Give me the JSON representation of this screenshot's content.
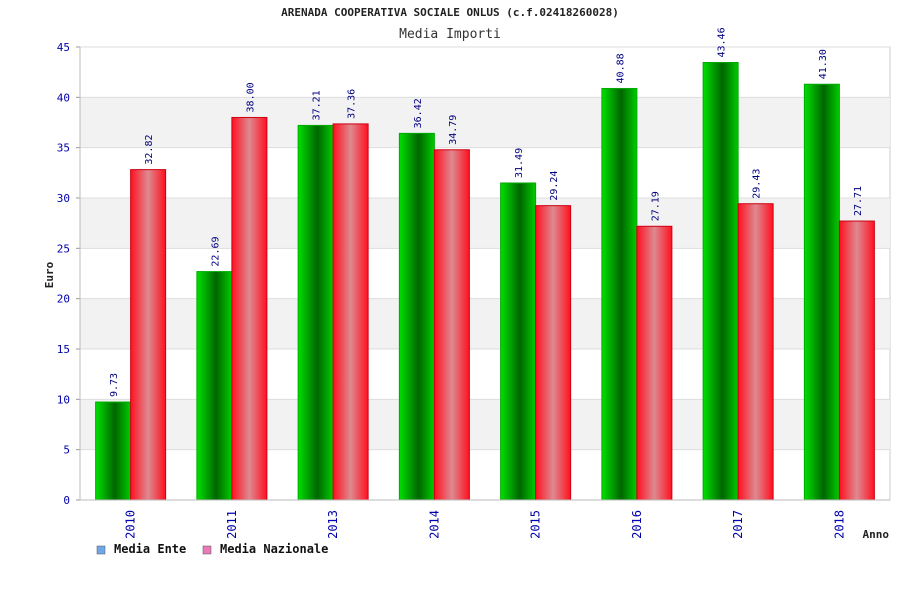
{
  "chart_data": {
    "type": "bar",
    "title": "ARENADA COOPERATIVA SOCIALE ONLUS (c.f.02418260028)",
    "subtitle": "Media Importi",
    "xlabel": "Anno",
    "ylabel": "Euro",
    "ylim": [
      0,
      45
    ],
    "yticks": [
      0,
      5,
      10,
      15,
      20,
      25,
      30,
      35,
      40,
      45
    ],
    "grid": true,
    "legend_position": "bottom-left",
    "categories": [
      "2010",
      "2011",
      "2013",
      "2014",
      "2015",
      "2016",
      "2017",
      "2018"
    ],
    "series": [
      {
        "name": "Media Ente",
        "values": [
          9.73,
          22.69,
          37.21,
          36.42,
          31.49,
          40.88,
          43.46,
          41.3
        ],
        "labels": [
          "9.73",
          "22.69",
          "37.21",
          "36.42",
          "31.49",
          "40.88",
          "43.46",
          "41.30"
        ],
        "color": "#00cc00",
        "legend_color": "#6fa8e8"
      },
      {
        "name": "Media Nazionale",
        "values": [
          32.82,
          38.0,
          37.36,
          34.79,
          29.24,
          27.19,
          29.43,
          27.71
        ],
        "labels": [
          "32.82",
          "38.00",
          "37.36",
          "34.79",
          "29.24",
          "27.19",
          "29.43",
          "27.71"
        ],
        "color": "#ee1122",
        "legend_color": "#e87ab8"
      }
    ]
  }
}
